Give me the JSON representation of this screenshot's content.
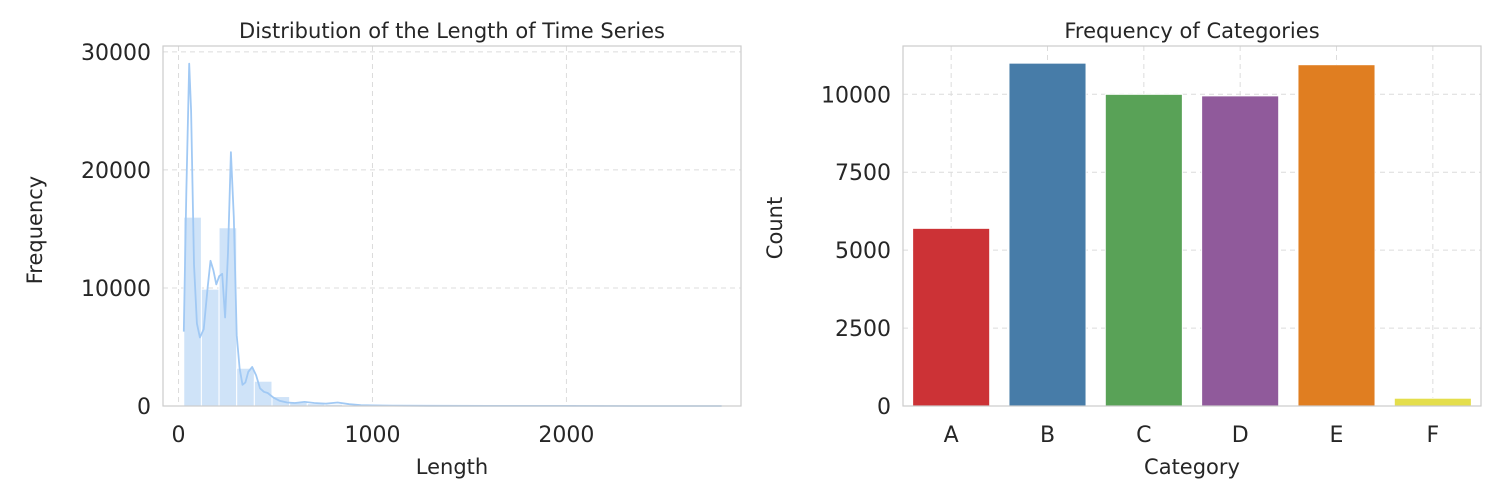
{
  "chart_data": [
    {
      "type": "histogram",
      "title": "Distribution of the Length of Time Series",
      "xlabel": "Length",
      "ylabel": "Frequency",
      "xlim": [
        -80,
        2900
      ],
      "ylim": [
        0,
        30500
      ],
      "xticks": [
        0,
        1000,
        2000
      ],
      "yticks": [
        0,
        10000,
        20000,
        30000
      ],
      "grid": true,
      "bins": [
        {
          "x0": 27,
          "x1": 118,
          "count": 16000
        },
        {
          "x0": 118,
          "x1": 209,
          "count": 9900
        },
        {
          "x0": 209,
          "x1": 300,
          "count": 15100
        },
        {
          "x0": 300,
          "x1": 391,
          "count": 3200
        },
        {
          "x0": 391,
          "x1": 482,
          "count": 2100
        },
        {
          "x0": 482,
          "x1": 573,
          "count": 800
        },
        {
          "x0": 573,
          "x1": 664,
          "count": 300
        },
        {
          "x0": 664,
          "x1": 755,
          "count": 200
        },
        {
          "x0": 755,
          "x1": 846,
          "count": 150
        },
        {
          "x0": 846,
          "x1": 937,
          "count": 80
        },
        {
          "x0": 937,
          "x1": 1028,
          "count": 40
        }
      ],
      "kde": {
        "x": [
          27,
          40,
          55,
          65,
          80,
          95,
          110,
          130,
          150,
          165,
          180,
          195,
          210,
          225,
          240,
          255,
          270,
          285,
          300,
          315,
          330,
          345,
          360,
          380,
          400,
          420,
          440,
          460,
          490,
          520,
          560,
          600,
          650,
          700,
          760,
          820,
          880,
          940,
          1000,
          1100,
          1300,
          1600,
          2000,
          2400,
          2800
        ],
        "y": [
          6300,
          18000,
          29000,
          25000,
          12000,
          7000,
          5800,
          6500,
          10000,
          12300,
          11500,
          10300,
          11000,
          11200,
          7500,
          13000,
          21500,
          16000,
          6000,
          3200,
          1800,
          2000,
          2900,
          3300,
          2600,
          1500,
          1200,
          1100,
          700,
          450,
          300,
          250,
          350,
          250,
          200,
          300,
          150,
          80,
          50,
          30,
          15,
          8,
          5,
          3,
          2
        ]
      },
      "colors": {
        "bar": "#cfe3f8",
        "bar_edge": "#ffffff",
        "line": "#a1c9f4"
      }
    },
    {
      "type": "bar",
      "title": "Frequency of Categories",
      "xlabel": "Category",
      "ylabel": "Count",
      "categories": [
        "A",
        "B",
        "C",
        "D",
        "E",
        "F"
      ],
      "values": [
        5700,
        11000,
        10000,
        9950,
        10950,
        250
      ],
      "ylim": [
        0,
        11550
      ],
      "yticks": [
        0,
        2500,
        5000,
        7500,
        10000
      ],
      "grid": true,
      "colors": [
        "#cc3236",
        "#477ca8",
        "#59a257",
        "#905a9b",
        "#e07e21",
        "#e4de4c"
      ]
    }
  ]
}
